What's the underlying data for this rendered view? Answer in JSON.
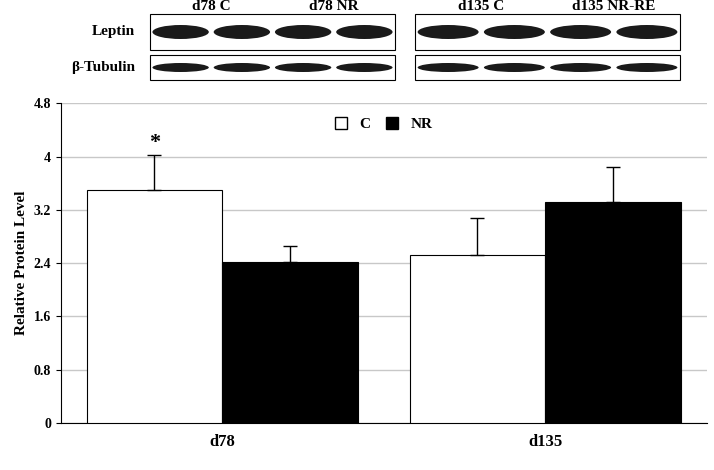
{
  "chart_data": {
    "type": "bar",
    "categories": [
      "d78",
      "d135"
    ],
    "series": [
      {
        "name": "C",
        "color": "#ffffff",
        "values": [
          3.5,
          2.52
        ],
        "errors": [
          0.52,
          0.56
        ]
      },
      {
        "name": "NR",
        "color": "#000000",
        "values": [
          2.42,
          3.32
        ],
        "errors": [
          0.24,
          0.52
        ]
      }
    ],
    "y_label": "Relative Protein Level",
    "ylim": [
      0,
      4.8
    ],
    "yticks": [
      0,
      0.8,
      1.6,
      2.4,
      3.2,
      4,
      4.8
    ],
    "grid": true,
    "legend": "upper center",
    "annotations": [
      {
        "text": "*",
        "category": "d78",
        "series": "C"
      }
    ]
  },
  "blot": {
    "rows": [
      "Leptin",
      "β-Tubulin"
    ],
    "panels": [
      [
        "d78 C",
        "d78 NR"
      ],
      [
        "d135 C",
        "d135 NR-RE"
      ]
    ]
  }
}
